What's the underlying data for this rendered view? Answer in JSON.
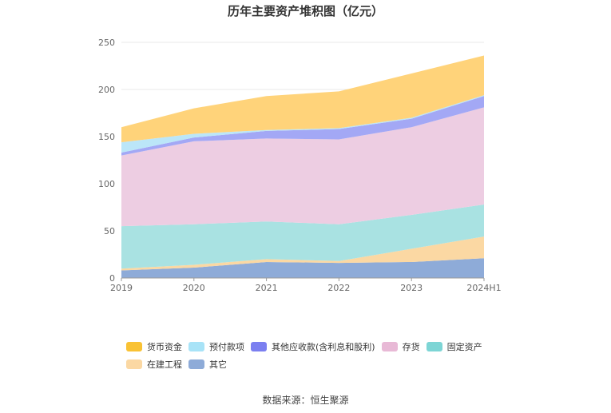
{
  "chart_data": {
    "type": "area",
    "stacked": true,
    "title": "历年主要资产堆积图（亿元）",
    "categories": [
      "2019",
      "2020",
      "2021",
      "2022",
      "2023",
      "2024H1"
    ],
    "ylim": [
      0,
      250
    ],
    "yticks": [
      0,
      50,
      100,
      150,
      200,
      250
    ],
    "series": [
      {
        "name": "其它",
        "color": "#8eabd8",
        "values": [
          8,
          11,
          17,
          16,
          17,
          21
        ]
      },
      {
        "name": "在建工程",
        "color": "#fbd8a3",
        "values": [
          2,
          3,
          3,
          2,
          14,
          23
        ]
      },
      {
        "name": "固定资产",
        "color": "#a9e2e2",
        "values": [
          45,
          43,
          40,
          39,
          36,
          34
        ]
      },
      {
        "name": "存货",
        "color": "#edcde2",
        "values": [
          75,
          88,
          88,
          90,
          93,
          103
        ]
      },
      {
        "name": "其他应收款(含利息和股利)",
        "color": "#a3a8f5",
        "values": [
          3,
          4,
          8,
          11,
          9,
          12
        ]
      },
      {
        "name": "预付款项",
        "color": "#bbe6f8",
        "values": [
          11,
          4,
          1,
          1,
          1,
          1
        ]
      },
      {
        "name": "货币资金",
        "color": "#ffd37a",
        "values": [
          16,
          27,
          36,
          39,
          47,
          42
        ]
      }
    ]
  },
  "legend": {
    "items": [
      {
        "label": "货币资金",
        "color": "#f9c234"
      },
      {
        "label": "预付款项",
        "color": "#a8e3f7"
      },
      {
        "label": "其他应收款(含利息和股利)",
        "color": "#7b7ff0"
      },
      {
        "label": "存货",
        "color": "#e8b9d6"
      },
      {
        "label": "固定资产",
        "color": "#7dd5d5"
      },
      {
        "label": "在建工程",
        "color": "#fbd8a3"
      },
      {
        "label": "其它",
        "color": "#8eabd8"
      }
    ]
  },
  "source": "数据来源：恒生聚源"
}
